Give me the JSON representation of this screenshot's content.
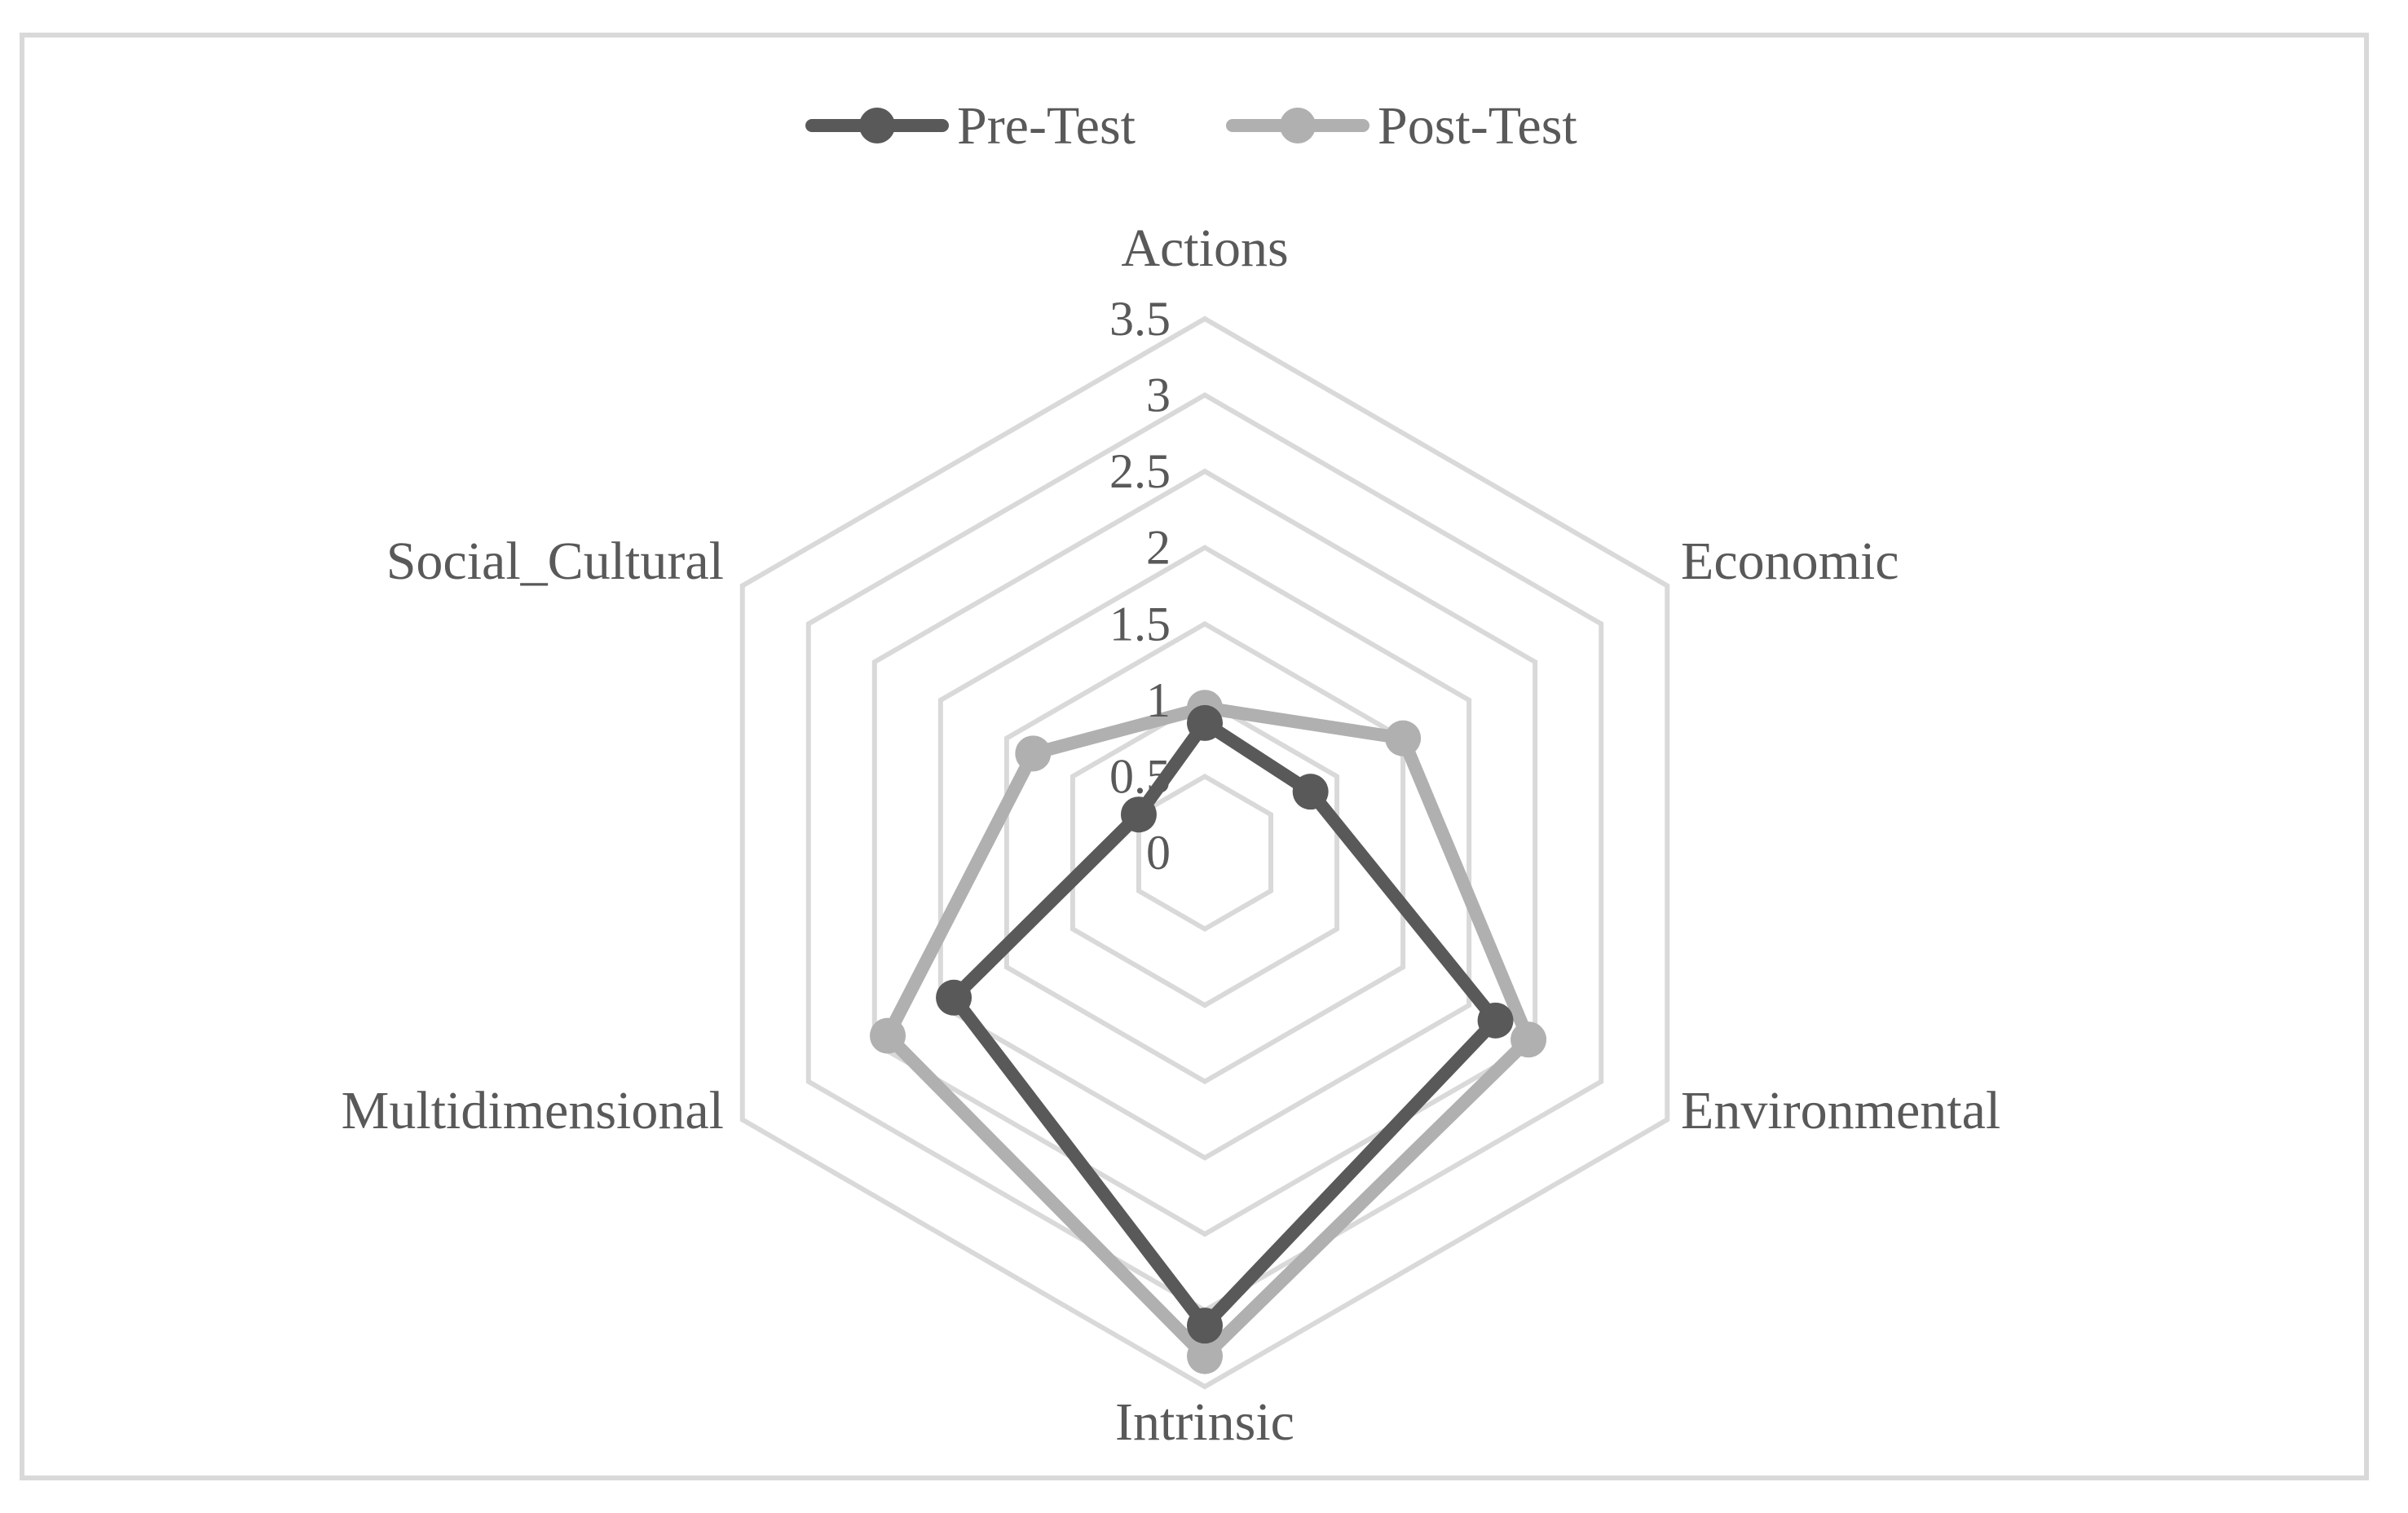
{
  "chart_data": {
    "type": "radar",
    "categories": [
      "Actions",
      "Economic",
      "Environmental",
      "Intrinsic",
      "Multidimensional",
      "Social_Cultural"
    ],
    "series": [
      {
        "name": "Pre-Test",
        "values": [
          0.85,
          0.8,
          2.2,
          3.1,
          1.9,
          0.5
        ],
        "color": "#595959"
      },
      {
        "name": "Post-Test",
        "values": [
          0.95,
          1.5,
          2.45,
          3.3,
          2.4,
          1.3
        ],
        "color": "#b0b0b0"
      }
    ],
    "r_ticks": [
      "0",
      "0.5",
      "1",
      "1.5",
      "2",
      "2.5",
      "3",
      "3.5"
    ],
    "r_range": [
      0,
      3.5
    ],
    "grid": true,
    "grid_color": "#d9d9d9",
    "legend_position": "top"
  }
}
